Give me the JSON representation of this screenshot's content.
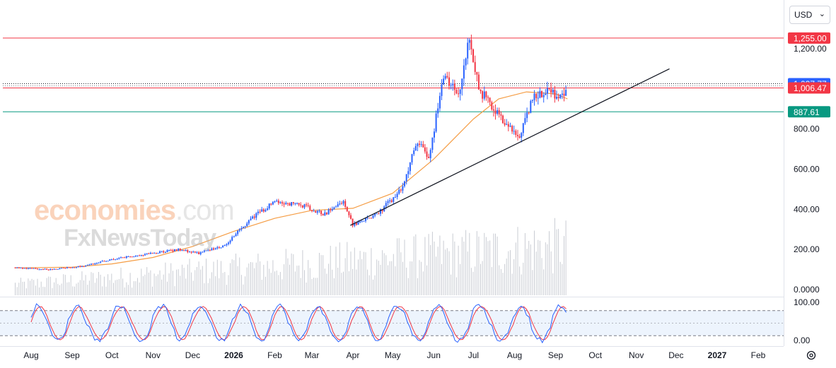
{
  "currency": {
    "label": "USD"
  },
  "watermark": {
    "brand": "economies",
    "tld": ".com",
    "sub": "FxNewsToday"
  },
  "colors": {
    "up": "#2962ff",
    "down": "#f23645",
    "ma": "#f59d45",
    "trend": "#131722",
    "resist": "#f23645",
    "support": "#089981",
    "stochK": "#2962ff",
    "stochD": "#f23645",
    "volume": "#c9ccd3"
  },
  "chart_data": {
    "type": "candlestick",
    "y_ticks": [
      "1,200.00",
      "800.00",
      "600.00",
      "400.00",
      "200.00",
      "0.0000"
    ],
    "y_tick_values": [
      1200,
      800,
      600,
      400,
      200,
      0
    ],
    "ylim": [
      0,
      1300
    ],
    "x_ticks": [
      {
        "label": "Aug",
        "date": "2025-08-01",
        "bold": false
      },
      {
        "label": "Sep",
        "date": "2025-09-01",
        "bold": false
      },
      {
        "label": "Oct",
        "date": "2025-10-01",
        "bold": false
      },
      {
        "label": "Nov",
        "date": "2025-11-01",
        "bold": false
      },
      {
        "label": "Dec",
        "date": "2025-12-01",
        "bold": false
      },
      {
        "label": "2026",
        "date": "2026-01-01",
        "bold": true
      },
      {
        "label": "Feb",
        "date": "2026-02-01",
        "bold": false
      },
      {
        "label": "Mar",
        "date": "2026-03-01",
        "bold": false
      },
      {
        "label": "Apr",
        "date": "2026-04-01",
        "bold": false
      },
      {
        "label": "May",
        "date": "2026-05-01",
        "bold": false
      },
      {
        "label": "Jun",
        "date": "2026-06-01",
        "bold": false
      },
      {
        "label": "Jul",
        "date": "2026-07-01",
        "bold": false
      },
      {
        "label": "Aug",
        "date": "2026-08-01",
        "bold": false
      },
      {
        "label": "Sep",
        "date": "2026-09-01",
        "bold": false
      },
      {
        "label": "Oct",
        "date": "2026-10-01",
        "bold": false
      },
      {
        "label": "Nov",
        "date": "2026-11-01",
        "bold": false
      },
      {
        "label": "Dec",
        "date": "2026-12-01",
        "bold": false
      },
      {
        "label": "2027",
        "date": "2027-01-01",
        "bold": true
      },
      {
        "label": "Feb",
        "date": "2027-02-01",
        "bold": false
      }
    ],
    "levels": [
      {
        "value": 1255.0,
        "label": "1,255.00",
        "kind": "resistance"
      },
      {
        "value": 1027.77,
        "label": "1,027.77",
        "kind": "last"
      },
      {
        "value": 1006.47,
        "label": "1,006.47",
        "kind": "resistance"
      },
      {
        "value": 887.61,
        "label": "887.61",
        "kind": "support"
      }
    ],
    "trendline": [
      {
        "date": "2026-03-30",
        "value": 320
      },
      {
        "date": "2026-11-26",
        "value": 1100
      }
    ],
    "moving_average": [
      {
        "date": "2025-07-20",
        "value": 108
      },
      {
        "date": "2025-09-01",
        "value": 112
      },
      {
        "date": "2025-10-01",
        "value": 128
      },
      {
        "date": "2025-11-01",
        "value": 160
      },
      {
        "date": "2025-12-01",
        "value": 215
      },
      {
        "date": "2026-01-01",
        "value": 290
      },
      {
        "date": "2026-02-01",
        "value": 355
      },
      {
        "date": "2026-03-01",
        "value": 395
      },
      {
        "date": "2026-04-01",
        "value": 405
      },
      {
        "date": "2026-05-01",
        "value": 480
      },
      {
        "date": "2026-06-01",
        "value": 650
      },
      {
        "date": "2026-07-01",
        "value": 850
      },
      {
        "date": "2026-07-20",
        "value": 950
      },
      {
        "date": "2026-08-10",
        "value": 985
      },
      {
        "date": "2026-09-01",
        "value": 975
      },
      {
        "date": "2026-09-10",
        "value": 950
      }
    ],
    "price_path": [
      {
        "date": "2025-07-20",
        "value": 110
      },
      {
        "date": "2025-08-15",
        "value": 100
      },
      {
        "date": "2025-09-10",
        "value": 118
      },
      {
        "date": "2025-10-01",
        "value": 150
      },
      {
        "date": "2025-10-25",
        "value": 175
      },
      {
        "date": "2025-11-20",
        "value": 200
      },
      {
        "date": "2025-12-05",
        "value": 180
      },
      {
        "date": "2025-12-25",
        "value": 220
      },
      {
        "date": "2026-01-15",
        "value": 360
      },
      {
        "date": "2026-02-01",
        "value": 440
      },
      {
        "date": "2026-02-25",
        "value": 415
      },
      {
        "date": "2026-03-10",
        "value": 375
      },
      {
        "date": "2026-03-25",
        "value": 440
      },
      {
        "date": "2026-04-01",
        "value": 320
      },
      {
        "date": "2026-04-20",
        "value": 380
      },
      {
        "date": "2026-05-08",
        "value": 500
      },
      {
        "date": "2026-05-20",
        "value": 750
      },
      {
        "date": "2026-05-28",
        "value": 650
      },
      {
        "date": "2026-06-08",
        "value": 1050
      },
      {
        "date": "2026-06-20",
        "value": 980
      },
      {
        "date": "2026-06-28",
        "value": 1250
      },
      {
        "date": "2026-07-05",
        "value": 1000
      },
      {
        "date": "2026-07-25",
        "value": 820
      },
      {
        "date": "2026-08-05",
        "value": 760
      },
      {
        "date": "2026-08-15",
        "value": 950
      },
      {
        "date": "2026-08-25",
        "value": 1000
      },
      {
        "date": "2026-09-05",
        "value": 960
      },
      {
        "date": "2026-09-10",
        "value": 1020
      }
    ],
    "stochastic": {
      "ticks": [
        "100.00",
        "0.00"
      ],
      "upper": 80,
      "lower": 20
    },
    "last_date": "2026-09-10"
  }
}
